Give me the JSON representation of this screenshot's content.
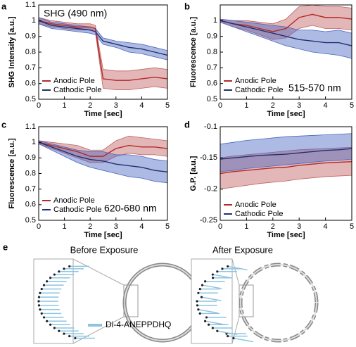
{
  "chart_data": [
    {
      "type": "line",
      "label": "a",
      "xlabel": "Time [sec]",
      "ylabel": "SHG Intensity [a.u.]",
      "annotation": "SHG (490 nm)",
      "annotation_color": "#4aa3a0",
      "xlim": [
        0,
        5
      ],
      "xticks": [
        0,
        1,
        2,
        3,
        4,
        5
      ],
      "ylim": [
        0.5,
        1.1
      ],
      "yticks": [
        0.5,
        0.6,
        0.7,
        0.8,
        0.9,
        1,
        1.1
      ],
      "legend": "lower left",
      "x": [
        0,
        0.5,
        1,
        1.5,
        2,
        2.2,
        2.5,
        3,
        3.5,
        4,
        4.5,
        5
      ],
      "series": [
        {
          "name": "Anodic Pole",
          "color": "#b22a2a",
          "band_color": "#c0605f",
          "values": [
            1,
            0.98,
            0.97,
            0.96,
            0.96,
            0.95,
            0.63,
            0.62,
            0.62,
            0.63,
            0.64,
            0.63
          ],
          "lower": [
            0.98,
            0.96,
            0.95,
            0.94,
            0.94,
            0.93,
            0.57,
            0.56,
            0.56,
            0.57,
            0.58,
            0.57
          ],
          "upper": [
            1.02,
            1,
            0.99,
            0.98,
            0.98,
            0.97,
            0.69,
            0.68,
            0.68,
            0.69,
            0.7,
            0.69
          ]
        },
        {
          "name": "Cathodic Pole",
          "color": "#23306e",
          "band_color": "#4a67c0",
          "values": [
            1,
            0.97,
            0.96,
            0.95,
            0.94,
            0.93,
            0.87,
            0.85,
            0.83,
            0.82,
            0.8,
            0.78
          ],
          "lower": [
            0.98,
            0.95,
            0.94,
            0.93,
            0.92,
            0.91,
            0.85,
            0.83,
            0.8,
            0.79,
            0.77,
            0.75
          ],
          "upper": [
            1.02,
            0.99,
            0.98,
            0.97,
            0.96,
            0.95,
            0.89,
            0.87,
            0.86,
            0.85,
            0.83,
            0.81
          ]
        }
      ]
    },
    {
      "type": "line",
      "label": "b",
      "xlabel": "Time [sec]",
      "ylabel": "Fluorescence [a.u.]",
      "annotation": "515-570 nm",
      "annotation_color": "#2f4a1e",
      "xlim": [
        0,
        5
      ],
      "xticks": [
        0,
        1,
        2,
        3,
        4,
        5
      ],
      "ylim": [
        0.5,
        1.1
      ],
      "yticks": [
        0.5,
        0.6,
        0.7,
        0.8,
        0.9,
        1
      ],
      "legend": "lower left",
      "x": [
        0,
        0.5,
        1,
        1.5,
        2,
        2.5,
        3,
        3.5,
        4,
        4.5,
        5
      ],
      "series": [
        {
          "name": "Anodic Pole",
          "color": "#b22a2a",
          "band_color": "#c0605f",
          "values": [
            1,
            0.98,
            0.97,
            0.95,
            0.93,
            0.95,
            1.02,
            1.04,
            1.02,
            1.02,
            1.01
          ],
          "lower": [
            0.99,
            0.96,
            0.94,
            0.91,
            0.88,
            0.89,
            0.95,
            0.97,
            0.95,
            0.95,
            0.94
          ],
          "upper": [
            1.01,
            1,
            1,
            0.99,
            0.98,
            1.01,
            1.09,
            1.1,
            1.09,
            1.09,
            1.08
          ]
        },
        {
          "name": "Cathodic Pole",
          "color": "#23306e",
          "band_color": "#4a67c0",
          "values": [
            1,
            0.98,
            0.96,
            0.94,
            0.92,
            0.9,
            0.88,
            0.87,
            0.86,
            0.86,
            0.84
          ],
          "lower": [
            0.99,
            0.96,
            0.93,
            0.9,
            0.87,
            0.84,
            0.82,
            0.8,
            0.79,
            0.78,
            0.76
          ],
          "upper": [
            1.01,
            1,
            0.99,
            0.98,
            0.97,
            0.96,
            0.94,
            0.94,
            0.93,
            0.94,
            0.92
          ]
        }
      ]
    },
    {
      "type": "line",
      "label": "c",
      "xlabel": "Time [sec]",
      "ylabel": "Fluorescence [a.u.]",
      "annotation": "620-680 nm",
      "annotation_color": "#7a1f1f",
      "xlim": [
        0,
        5
      ],
      "xticks": [
        0,
        1,
        2,
        3,
        4,
        5
      ],
      "ylim": [
        0.5,
        1.1
      ],
      "yticks": [
        0.5,
        0.6,
        0.7,
        0.8,
        0.9,
        1,
        1.1
      ],
      "legend": "lower left",
      "x": [
        0,
        0.5,
        1,
        1.5,
        2,
        2.5,
        3,
        3.5,
        4,
        4.5,
        5
      ],
      "series": [
        {
          "name": "Anodic Pole",
          "color": "#b22a2a",
          "band_color": "#c0605f",
          "values": [
            1,
            0.98,
            0.96,
            0.94,
            0.91,
            0.91,
            0.96,
            0.98,
            0.97,
            0.97,
            0.96
          ],
          "lower": [
            0.99,
            0.96,
            0.93,
            0.9,
            0.87,
            0.87,
            0.91,
            0.93,
            0.92,
            0.92,
            0.91
          ],
          "upper": [
            1.01,
            1,
            0.99,
            0.98,
            0.95,
            0.95,
            1.01,
            1.04,
            1.03,
            1.02,
            1.01
          ]
        },
        {
          "name": "Cathodic Pole",
          "color": "#23306e",
          "band_color": "#4a67c0",
          "values": [
            1,
            0.97,
            0.94,
            0.91,
            0.89,
            0.88,
            0.86,
            0.85,
            0.84,
            0.82,
            0.81
          ],
          "lower": [
            0.99,
            0.95,
            0.91,
            0.87,
            0.84,
            0.82,
            0.8,
            0.78,
            0.77,
            0.75,
            0.74
          ],
          "upper": [
            1.01,
            0.99,
            0.97,
            0.95,
            0.94,
            0.94,
            0.92,
            0.92,
            0.91,
            0.89,
            0.88
          ]
        }
      ]
    },
    {
      "type": "line",
      "label": "d",
      "xlabel": "Time [sec]",
      "ylabel": "G.P. [a.u.]",
      "xlim": [
        0,
        5
      ],
      "xticks": [
        0,
        1,
        2,
        3,
        4,
        5
      ],
      "ylim": [
        -0.25,
        -0.1
      ],
      "yticks": [
        -0.25,
        -0.2,
        -0.15,
        -0.1
      ],
      "legend": "lower left",
      "x": [
        0,
        0.5,
        1,
        1.5,
        2,
        2.5,
        3,
        3.5,
        4,
        4.5,
        5
      ],
      "series": [
        {
          "name": "Anodic Pole",
          "color": "#b22a2a",
          "band_color": "#c0605f",
          "values": [
            -0.175,
            -0.172,
            -0.17,
            -0.168,
            -0.166,
            -0.165,
            -0.162,
            -0.16,
            -0.158,
            -0.157,
            -0.156
          ],
          "lower": [
            -0.2,
            -0.197,
            -0.194,
            -0.191,
            -0.189,
            -0.187,
            -0.184,
            -0.182,
            -0.18,
            -0.179,
            -0.178
          ],
          "upper": [
            -0.15,
            -0.147,
            -0.145,
            -0.143,
            -0.141,
            -0.139,
            -0.137,
            -0.136,
            -0.135,
            -0.134,
            -0.133
          ]
        },
        {
          "name": "Cathodic Pole",
          "color": "#23306e",
          "band_color": "#4a67c0",
          "values": [
            -0.152,
            -0.15,
            -0.148,
            -0.146,
            -0.145,
            -0.144,
            -0.142,
            -0.14,
            -0.138,
            -0.137,
            -0.135
          ],
          "lower": [
            -0.172,
            -0.17,
            -0.167,
            -0.165,
            -0.163,
            -0.161,
            -0.159,
            -0.157,
            -0.155,
            -0.154,
            -0.152
          ],
          "upper": [
            -0.128,
            -0.125,
            -0.122,
            -0.12,
            -0.118,
            -0.116,
            -0.115,
            -0.114,
            -0.113,
            -0.112,
            -0.111
          ]
        }
      ]
    }
  ],
  "diagram": {
    "label": "e",
    "before_title": "Before Exposure",
    "after_title": "After Exposure",
    "legend": "Di-4-ANEPPDHQ"
  }
}
